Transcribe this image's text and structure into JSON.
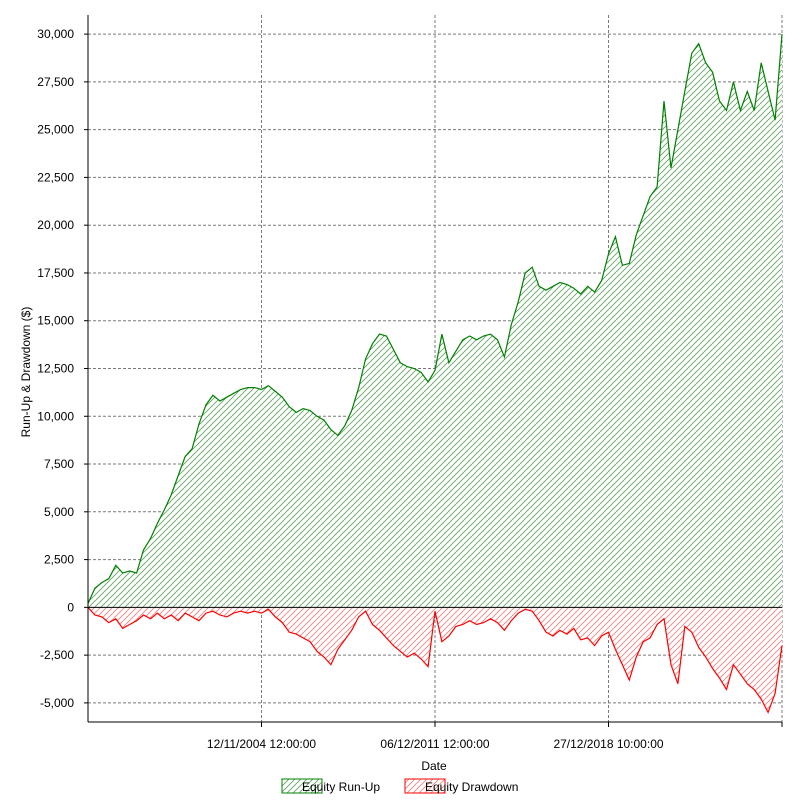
{
  "chart_data": {
    "type": "area",
    "title": "",
    "xlabel": "Date",
    "ylabel": "Run-Up & Drawdown ($)",
    "ylim": [
      -6000,
      31000
    ],
    "yticks": [
      -5000,
      -2500,
      0,
      2500,
      5000,
      7500,
      10000,
      12500,
      15000,
      17500,
      20000,
      22500,
      25000,
      27500,
      30000
    ],
    "ytick_labels": [
      "-5,000",
      "-2,500",
      "0",
      "2,500",
      "5,000",
      "7,500",
      "10,000",
      "12,500",
      "15,000",
      "17,500",
      "20,000",
      "22,500",
      "25,000",
      "27,500",
      "30,000"
    ],
    "xticks": [
      0.25,
      0.5,
      0.75
    ],
    "xtick_labels": [
      "12/11/2004 12:00:00",
      "06/12/2011 12:00:00",
      "27/12/2018 10:00:00"
    ],
    "grid": true,
    "legend": "bottom",
    "series": [
      {
        "name": "Equity Run-Up",
        "color": "#008000",
        "x": [
          0,
          0.01,
          0.02,
          0.03,
          0.04,
          0.05,
          0.06,
          0.07,
          0.08,
          0.09,
          0.1,
          0.11,
          0.12,
          0.13,
          0.14,
          0.15,
          0.16,
          0.17,
          0.18,
          0.19,
          0.2,
          0.21,
          0.22,
          0.23,
          0.24,
          0.25,
          0.26,
          0.27,
          0.28,
          0.29,
          0.3,
          0.31,
          0.32,
          0.33,
          0.34,
          0.35,
          0.36,
          0.37,
          0.38,
          0.39,
          0.4,
          0.41,
          0.42,
          0.43,
          0.44,
          0.45,
          0.46,
          0.47,
          0.48,
          0.49,
          0.5,
          0.51,
          0.52,
          0.53,
          0.54,
          0.55,
          0.56,
          0.57,
          0.58,
          0.59,
          0.6,
          0.61,
          0.62,
          0.63,
          0.64,
          0.65,
          0.66,
          0.67,
          0.68,
          0.69,
          0.7,
          0.71,
          0.72,
          0.73,
          0.74,
          0.75,
          0.76,
          0.77,
          0.78,
          0.79,
          0.8,
          0.81,
          0.82,
          0.83,
          0.84,
          0.85,
          0.86,
          0.87,
          0.88,
          0.89,
          0.9,
          0.91,
          0.92,
          0.93,
          0.94,
          0.95,
          0.96,
          0.97,
          0.98,
          0.99,
          1
        ],
        "values": [
          200,
          1000,
          1300,
          1500,
          2200,
          1800,
          1900,
          1800,
          3000,
          3600,
          4400,
          5100,
          5900,
          6900,
          7900,
          8300,
          9600,
          10600,
          11100,
          10800,
          11000,
          11200,
          11400,
          11500,
          11500,
          11400,
          11600,
          11300,
          11000,
          10500,
          10200,
          10400,
          10300,
          10000,
          9800,
          9300,
          9000,
          9500,
          10300,
          11500,
          13000,
          13800,
          14300,
          14200,
          13500,
          12800,
          12600,
          12500,
          12300,
          11800,
          12400,
          14300,
          12800,
          13400,
          14000,
          14200,
          14000,
          14200,
          14300,
          14000,
          13100,
          14800,
          16000,
          17500,
          17800,
          16800,
          16600,
          16800,
          17000,
          16900,
          16700,
          16400,
          16800,
          16500,
          17100,
          18500,
          19400,
          17900,
          18000,
          19500,
          20500,
          21500,
          22000,
          26500,
          23000,
          25000,
          27000,
          29000,
          29500,
          28500,
          28000,
          26500,
          26000,
          27500,
          26000,
          27000,
          26000,
          28500,
          27000,
          25500,
          30000
        ]
      },
      {
        "name": "Equity Drawdown",
        "color": "#ff0000",
        "x": [
          0,
          0.01,
          0.02,
          0.03,
          0.04,
          0.05,
          0.06,
          0.07,
          0.08,
          0.09,
          0.1,
          0.11,
          0.12,
          0.13,
          0.14,
          0.15,
          0.16,
          0.17,
          0.18,
          0.19,
          0.2,
          0.21,
          0.22,
          0.23,
          0.24,
          0.25,
          0.26,
          0.27,
          0.28,
          0.29,
          0.3,
          0.31,
          0.32,
          0.33,
          0.34,
          0.35,
          0.36,
          0.37,
          0.38,
          0.39,
          0.4,
          0.41,
          0.42,
          0.43,
          0.44,
          0.45,
          0.46,
          0.47,
          0.48,
          0.49,
          0.5,
          0.51,
          0.52,
          0.53,
          0.54,
          0.55,
          0.56,
          0.57,
          0.58,
          0.59,
          0.6,
          0.61,
          0.62,
          0.63,
          0.64,
          0.65,
          0.66,
          0.67,
          0.68,
          0.69,
          0.7,
          0.71,
          0.72,
          0.73,
          0.74,
          0.75,
          0.76,
          0.77,
          0.78,
          0.79,
          0.8,
          0.81,
          0.82,
          0.83,
          0.84,
          0.85,
          0.86,
          0.87,
          0.88,
          0.89,
          0.9,
          0.91,
          0.92,
          0.93,
          0.94,
          0.95,
          0.96,
          0.97,
          0.98,
          0.99,
          1
        ],
        "values": [
          0,
          -400,
          -500,
          -800,
          -600,
          -1100,
          -900,
          -700,
          -400,
          -600,
          -300,
          -600,
          -400,
          -700,
          -300,
          -500,
          -700,
          -300,
          -200,
          -400,
          -500,
          -300,
          -200,
          -300,
          -200,
          -300,
          -100,
          -500,
          -800,
          -1300,
          -1400,
          -1600,
          -1800,
          -2300,
          -2600,
          -3000,
          -2200,
          -1700,
          -1200,
          -500,
          -200,
          -900,
          -1200,
          -1600,
          -2000,
          -2300,
          -2600,
          -2400,
          -2700,
          -3100,
          -200,
          -1800,
          -1500,
          -1000,
          -900,
          -700,
          -900,
          -800,
          -600,
          -800,
          -1200,
          -700,
          -300,
          -100,
          -200,
          -700,
          -1300,
          -1500,
          -1200,
          -1400,
          -1100,
          -1700,
          -1600,
          -2000,
          -1500,
          -1300,
          -2200,
          -3000,
          -3800,
          -2600,
          -1800,
          -1600,
          -900,
          -600,
          -3000,
          -4000,
          -1000,
          -1300,
          -2100,
          -2600,
          -3200,
          -3700,
          -4300,
          -3000,
          -3500,
          -4000,
          -4300,
          -4800,
          -5500,
          -4500,
          -2000
        ]
      }
    ]
  }
}
